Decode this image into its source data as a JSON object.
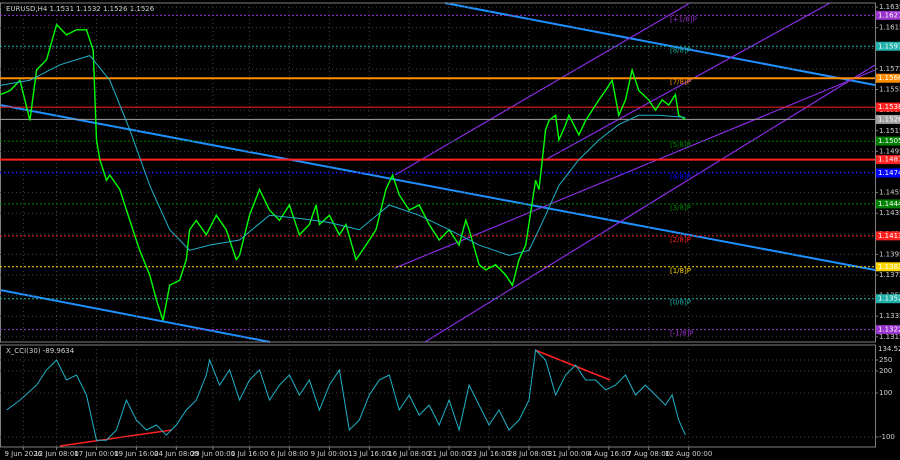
{
  "chart_data": [
    {
      "type": "line",
      "title": "EURUSD,H4  1.1531 1.1532 1.1526 1.1526",
      "xlim": [
        0,
        263
      ],
      "ylim": [
        1.131,
        1.1639
      ],
      "yticks": [
        1.1635,
        1.1615,
        1.1595,
        1.1575,
        1.1555,
        1.1535,
        1.1515,
        1.1495,
        1.1475,
        1.1455,
        1.1435,
        1.1415,
        1.1395,
        1.1375,
        1.1355,
        1.1335,
        1.1315
      ],
      "grid": true,
      "series": [
        {
          "color": "#00ff00",
          "x": [
            0,
            3,
            6,
            9,
            11,
            14,
            17,
            20,
            23,
            26,
            28,
            29,
            30,
            32,
            33,
            36,
            39,
            42,
            45,
            47,
            49,
            51,
            54,
            56,
            57,
            59,
            62,
            65,
            68,
            71,
            72,
            75,
            78,
            81,
            84,
            87,
            90,
            93,
            95,
            96,
            99,
            102,
            104,
            107,
            110,
            113,
            116,
            118,
            120,
            123,
            126,
            129,
            132,
            135,
            138,
            140,
            141,
            144,
            146,
            149,
            152,
            154,
            156,
            158,
            161,
            162,
            164,
            165,
            167,
            168,
            170,
            171,
            174,
            176,
            178,
            180,
            182,
            184,
            186,
            188,
            190,
            192,
            195,
            197,
            199,
            201,
            203,
            204,
            206
          ],
          "values": [
            1.155,
            1.1554,
            1.1564,
            1.1525,
            1.1574,
            1.1584,
            1.1618,
            1.1608,
            1.1613,
            1.1613,
            1.1593,
            1.1506,
            1.1487,
            1.1467,
            1.1472,
            1.1458,
            1.1428,
            1.1399,
            1.1375,
            1.1351,
            1.1331,
            1.1365,
            1.137,
            1.139,
            1.1419,
            1.1428,
            1.1414,
            1.1433,
            1.1419,
            1.139,
            1.1394,
            1.1433,
            1.1458,
            1.1438,
            1.1428,
            1.1443,
            1.1414,
            1.1424,
            1.1443,
            1.1424,
            1.1433,
            1.1414,
            1.1424,
            1.139,
            1.1404,
            1.1419,
            1.1458,
            1.1472,
            1.1453,
            1.1438,
            1.1443,
            1.1424,
            1.1409,
            1.1419,
            1.1404,
            1.1428,
            1.1419,
            1.1385,
            1.138,
            1.1385,
            1.1375,
            1.1365,
            1.139,
            1.1404,
            1.1467,
            1.1458,
            1.1516,
            1.1525,
            1.153,
            1.1506,
            1.1521,
            1.153,
            1.1511,
            1.1525,
            1.1535,
            1.1545,
            1.1554,
            1.1564,
            1.153,
            1.1545,
            1.1574,
            1.1554,
            1.1545,
            1.1535,
            1.1545,
            1.154,
            1.155,
            1.153,
            1.1526
          ]
        },
        {
          "color": "#20b2c8",
          "x": [
            0,
            9,
            18,
            27,
            33,
            39,
            45,
            51,
            57,
            63,
            72,
            81,
            90,
            99,
            108,
            117,
            126,
            135,
            144,
            153,
            159,
            164,
            168,
            174,
            180,
            186,
            192,
            198,
            206
          ],
          "values": [
            1.1559,
            1.1564,
            1.1579,
            1.1588,
            1.1564,
            1.1516,
            1.1462,
            1.1419,
            1.1399,
            1.1404,
            1.1409,
            1.1433,
            1.143,
            1.1426,
            1.1419,
            1.1443,
            1.1433,
            1.1419,
            1.1404,
            1.1394,
            1.1399,
            1.1433,
            1.1462,
            1.1487,
            1.1506,
            1.1521,
            1.153,
            1.153,
            1.1528
          ]
        }
      ],
      "levels": [
        {
          "value": 1.1627,
          "tag": "[+1/8]P",
          "color": "#9932cc"
        },
        {
          "value": 1.1597,
          "tag": "[8/8]P",
          "color": "#20b2aa"
        },
        {
          "value": 1.1566,
          "tag": "[7/8]P",
          "color": "#ff8c00"
        },
        {
          "value": 1.1538,
          "color": "#ff2020"
        },
        {
          "value": 1.1526,
          "color": "#a0a0a0"
        },
        {
          "value": 1.1505,
          "tag": "[5/8]P",
          "color": "#008000"
        },
        {
          "value": 1.1487,
          "color": "#ff2020"
        },
        {
          "value": 1.1474,
          "tag": "[4/8]P",
          "color": "#0000ff"
        },
        {
          "value": 1.1444,
          "tag": "[3/8]P",
          "color": "#008000"
        },
        {
          "value": 1.1413,
          "tag": "[2/8]P",
          "color": "#ff2020"
        },
        {
          "value": 1.1383,
          "tag": "[1/8]P",
          "color": "#ffd700"
        },
        {
          "value": 1.1352,
          "tag": "[0/8]P",
          "color": "#20b2aa"
        },
        {
          "value": 1.1322,
          "tag": "[-1/8]P",
          "color": "#9932cc"
        }
      ]
    },
    {
      "type": "line",
      "title": "X_CCI(30) -89.9634",
      "scale_label": "134.5265",
      "xlim": [
        0,
        263
      ],
      "ylim": [
        -145,
        318
      ],
      "yticks": [
        250,
        200,
        100,
        -100
      ],
      "xticks": [
        {
          "value": 7,
          "label": "9 Jun 2026"
        },
        {
          "value": 17,
          "label": "12 Jun 08:00"
        },
        {
          "value": 29,
          "label": "17 Jun 00:00"
        },
        {
          "value": 41,
          "label": "19 Jun 16:00"
        },
        {
          "value": 53,
          "label": "24 Jun 08:00"
        },
        {
          "value": 64,
          "label": "29 Jun 00:00"
        },
        {
          "value": 75,
          "label": "1 Jul 16:00"
        },
        {
          "value": 87,
          "label": "6 Jul 08:00"
        },
        {
          "value": 99,
          "label": "9 Jul 00:00"
        },
        {
          "value": 111,
          "label": "13 Jul 16:00"
        },
        {
          "value": 123,
          "label": "16 Jul 08:00"
        },
        {
          "value": 135,
          "label": "21 Jul 00:00"
        },
        {
          "value": 147,
          "label": "23 Jul 16:00"
        },
        {
          "value": 159,
          "label": "28 Jul 08:00"
        },
        {
          "value": 171,
          "label": "31 Jul 00:00"
        },
        {
          "value": 183,
          "label": "4 Aug 16:00"
        },
        {
          "value": 195,
          "label": "7 Aug 08:00"
        },
        {
          "value": 207,
          "label": "12 Aug 00:00"
        }
      ],
      "series": [
        {
          "color": "#20b2c8",
          "x": [
            2,
            6,
            11,
            14,
            17,
            20,
            23,
            26,
            29,
            32,
            35,
            38,
            41,
            44,
            47,
            50,
            53,
            56,
            59,
            62,
            63,
            66,
            69,
            72,
            75,
            78,
            81,
            84,
            87,
            90,
            93,
            96,
            99,
            102,
            105,
            108,
            111,
            114,
            117,
            120,
            123,
            126,
            129,
            132,
            135,
            138,
            141,
            144,
            147,
            150,
            153,
            156,
            159,
            161,
            164,
            167,
            170,
            173,
            176,
            179,
            182,
            185,
            188,
            191,
            194,
            197,
            200,
            202,
            204,
            206
          ],
          "values": [
            23,
            68,
            136,
            205,
            250,
            159,
            182,
            91,
            -114,
            -114,
            -68,
            68,
            -23,
            -68,
            -45,
            -91,
            -45,
            23,
            68,
            182,
            250,
            136,
            205,
            68,
            159,
            205,
            68,
            136,
            182,
            91,
            159,
            23,
            136,
            205,
            -68,
            -23,
            91,
            159,
            182,
            23,
            91,
            0,
            45,
            -45,
            68,
            -68,
            136,
            45,
            -45,
            23,
            -68,
            -23,
            68,
            295,
            250,
            91,
            182,
            227,
            159,
            159,
            114,
            136,
            182,
            91,
            136,
            91,
            45,
            91,
            -23,
            -90
          ]
        }
      ]
    }
  ]
}
